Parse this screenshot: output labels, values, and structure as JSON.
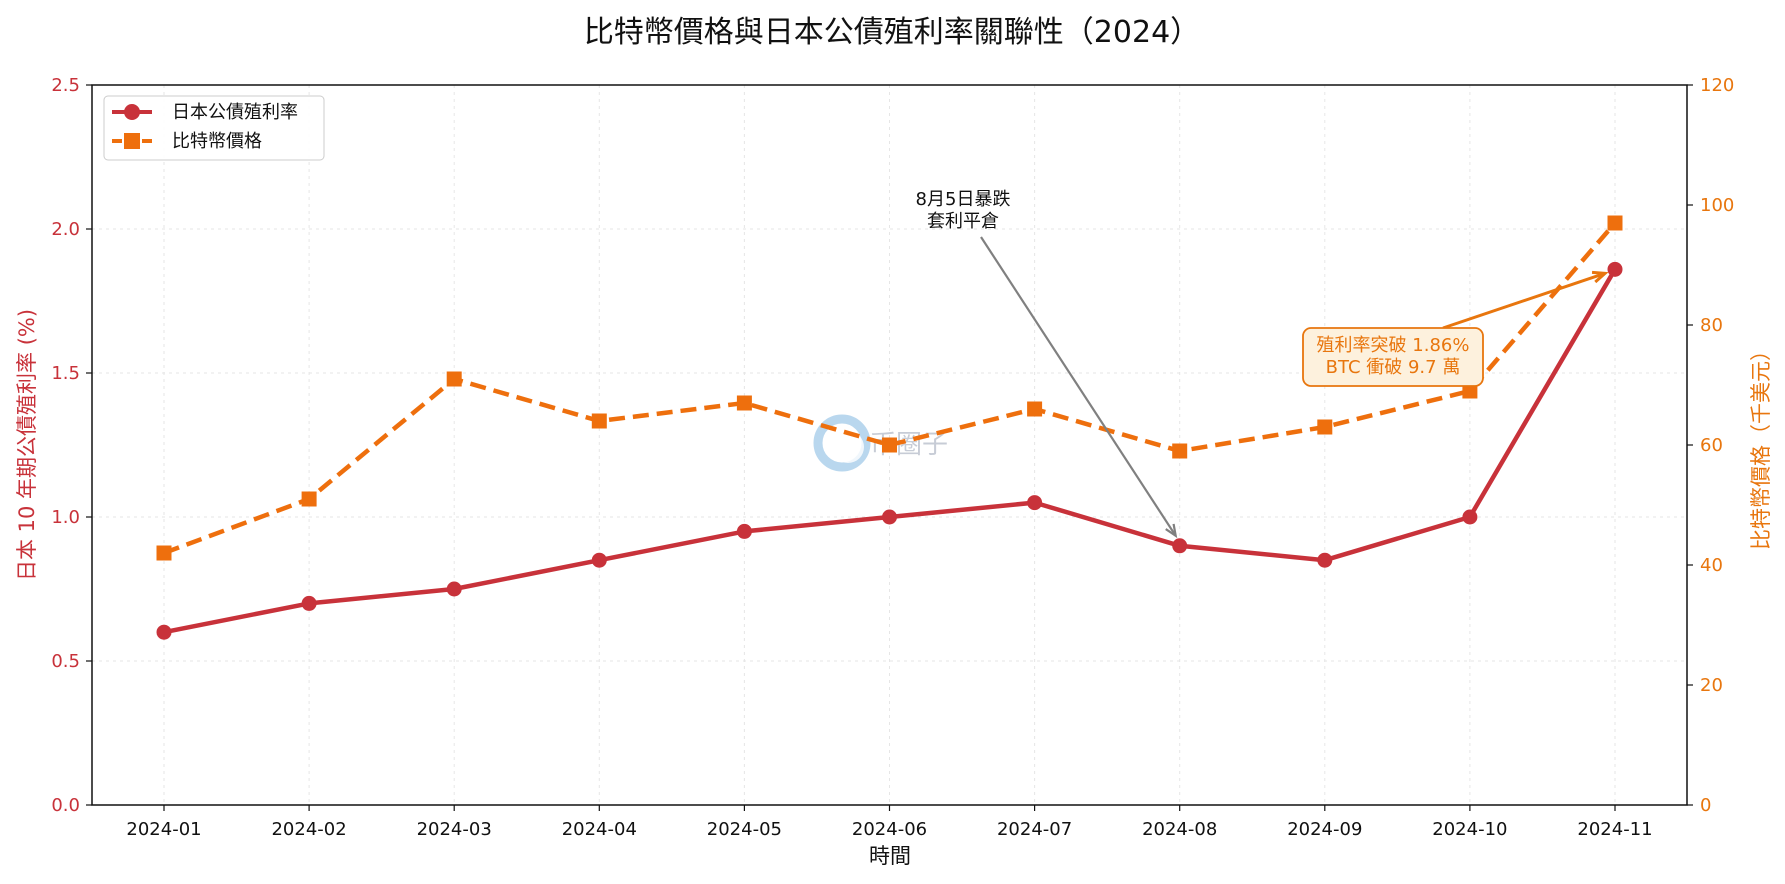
{
  "chart_data": {
    "type": "line",
    "title": "比特幣價格與日本公債殖利率關聯性（2024）",
    "xlabel": "時間",
    "categories": [
      "2024-01",
      "2024-02",
      "2024-03",
      "2024-04",
      "2024-05",
      "2024-06",
      "2024-07",
      "2024-08",
      "2024-09",
      "2024-10",
      "2024-11"
    ],
    "y_left": {
      "label": "日本 10 年期公債殖利率 (%)",
      "lim": [
        0,
        2.5
      ],
      "ticks": [
        "0.0",
        "0.5",
        "1.0",
        "1.5",
        "2.0",
        "2.5"
      ]
    },
    "y_right": {
      "label": "比特幣價格（千美元）",
      "lim": [
        0,
        120
      ],
      "ticks": [
        "0",
        "20",
        "40",
        "60",
        "80",
        "100",
        "120"
      ]
    },
    "series": [
      {
        "name": "日本公債殖利率",
        "axis": "left",
        "color": "#c8323a",
        "marker": "circle",
        "style": "solid",
        "values": [
          0.6,
          0.7,
          0.75,
          0.85,
          0.95,
          1.0,
          1.05,
          0.9,
          0.85,
          1.0,
          1.86
        ]
      },
      {
        "name": "比特幣價格",
        "axis": "right",
        "color": "#ee6f0d",
        "marker": "square",
        "style": "dashed",
        "values": [
          42,
          51,
          71,
          64,
          67,
          60,
          66,
          59,
          63,
          69,
          97
        ]
      }
    ],
    "legend_position": "top-left",
    "grid": true,
    "annotations": [
      {
        "lines": [
          "8月5日暴跌",
          "套利平倉"
        ],
        "target_category": "2024-08",
        "target_axis": "left",
        "target_value": 0.9,
        "arrow_color": "#808080"
      },
      {
        "lines": [
          "殖利率突破 1.86%",
          "BTC 衝破 9.7 萬"
        ],
        "target_category": "2024-11",
        "target_axis": "left",
        "target_value": 1.86,
        "color": "#e8760e",
        "box_fill": "#fdf1dd"
      }
    ],
    "watermark": "币圈子"
  }
}
